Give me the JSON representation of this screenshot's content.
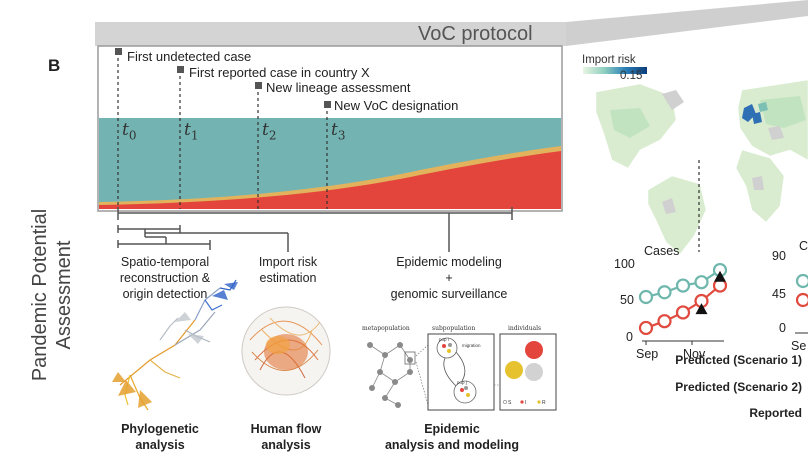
{
  "panel_label": "B",
  "header": {
    "title": "VoC protocol"
  },
  "side_title": "Pandemic Potential Assessment",
  "timeline_events": [
    {
      "label": "First undetected case",
      "t": "t",
      "sub": "0"
    },
    {
      "label": "First reported case in country X",
      "t": "t",
      "sub": "1"
    },
    {
      "label": "New lineage assessment",
      "t": "t",
      "sub": "2"
    },
    {
      "label": "New VoC designation",
      "t": "t",
      "sub": "3"
    }
  ],
  "steps": [
    {
      "lines": [
        "Spatio-temporal",
        "reconstruction &",
        "origin detection"
      ]
    },
    {
      "lines": [
        "Import risk",
        "estimation"
      ]
    },
    {
      "lines": [
        "Epidemic modeling",
        "+",
        "genomic surveillance"
      ]
    }
  ],
  "methods": [
    {
      "lines": [
        "Phylogenetic",
        "analysis"
      ]
    },
    {
      "lines": [
        "Human flow",
        "analysis"
      ]
    },
    {
      "lines": [
        "Epidemic",
        "analysis and modeling"
      ]
    }
  ],
  "schematic_labels": {
    "metapopulation": "metapopulation",
    "subpopulation": "subpopulation",
    "individuals": "individuals",
    "migration": "migration",
    "pop_a": "pop i",
    "pop_b": "pop j",
    "legend_s": "S",
    "legend_i": "I",
    "legend_r": "R"
  },
  "map_legend": {
    "title": "Import risk",
    "value": "0.15"
  },
  "chart_data": [
    {
      "type": "line",
      "title": "Cases",
      "x_ticks": [
        "Sep",
        "Nov"
      ],
      "y_ticks": [
        "0",
        "50",
        "100"
      ],
      "ylim": [
        0,
        110
      ],
      "x": [
        0,
        1,
        2,
        3,
        4
      ],
      "series": [
        {
          "values": [
            58,
            65,
            75,
            80,
            98
          ],
          "color": "#6fb7ad"
        },
        {
          "values": [
            12,
            22,
            35,
            52,
            75
          ],
          "color": "#e04a3f"
        }
      ],
      "markers": [
        {
          "x": 3,
          "y": 40
        },
        {
          "x": 4,
          "y": 88
        }
      ]
    },
    {
      "type": "line",
      "title_partial": "C",
      "y_ticks": [
        "0",
        "45",
        "90"
      ],
      "x_ticks": [
        "Se"
      ],
      "ylim": [
        0,
        100
      ]
    }
  ],
  "scenario_labels": [
    "Predicted (Scenario 1)",
    "Predicted (Scenario 2)",
    "Reported"
  ],
  "colors": {
    "teal": "#6fb7ad",
    "red": "#e04a3f",
    "orange": "#e8a94d",
    "grey": "#555555"
  }
}
